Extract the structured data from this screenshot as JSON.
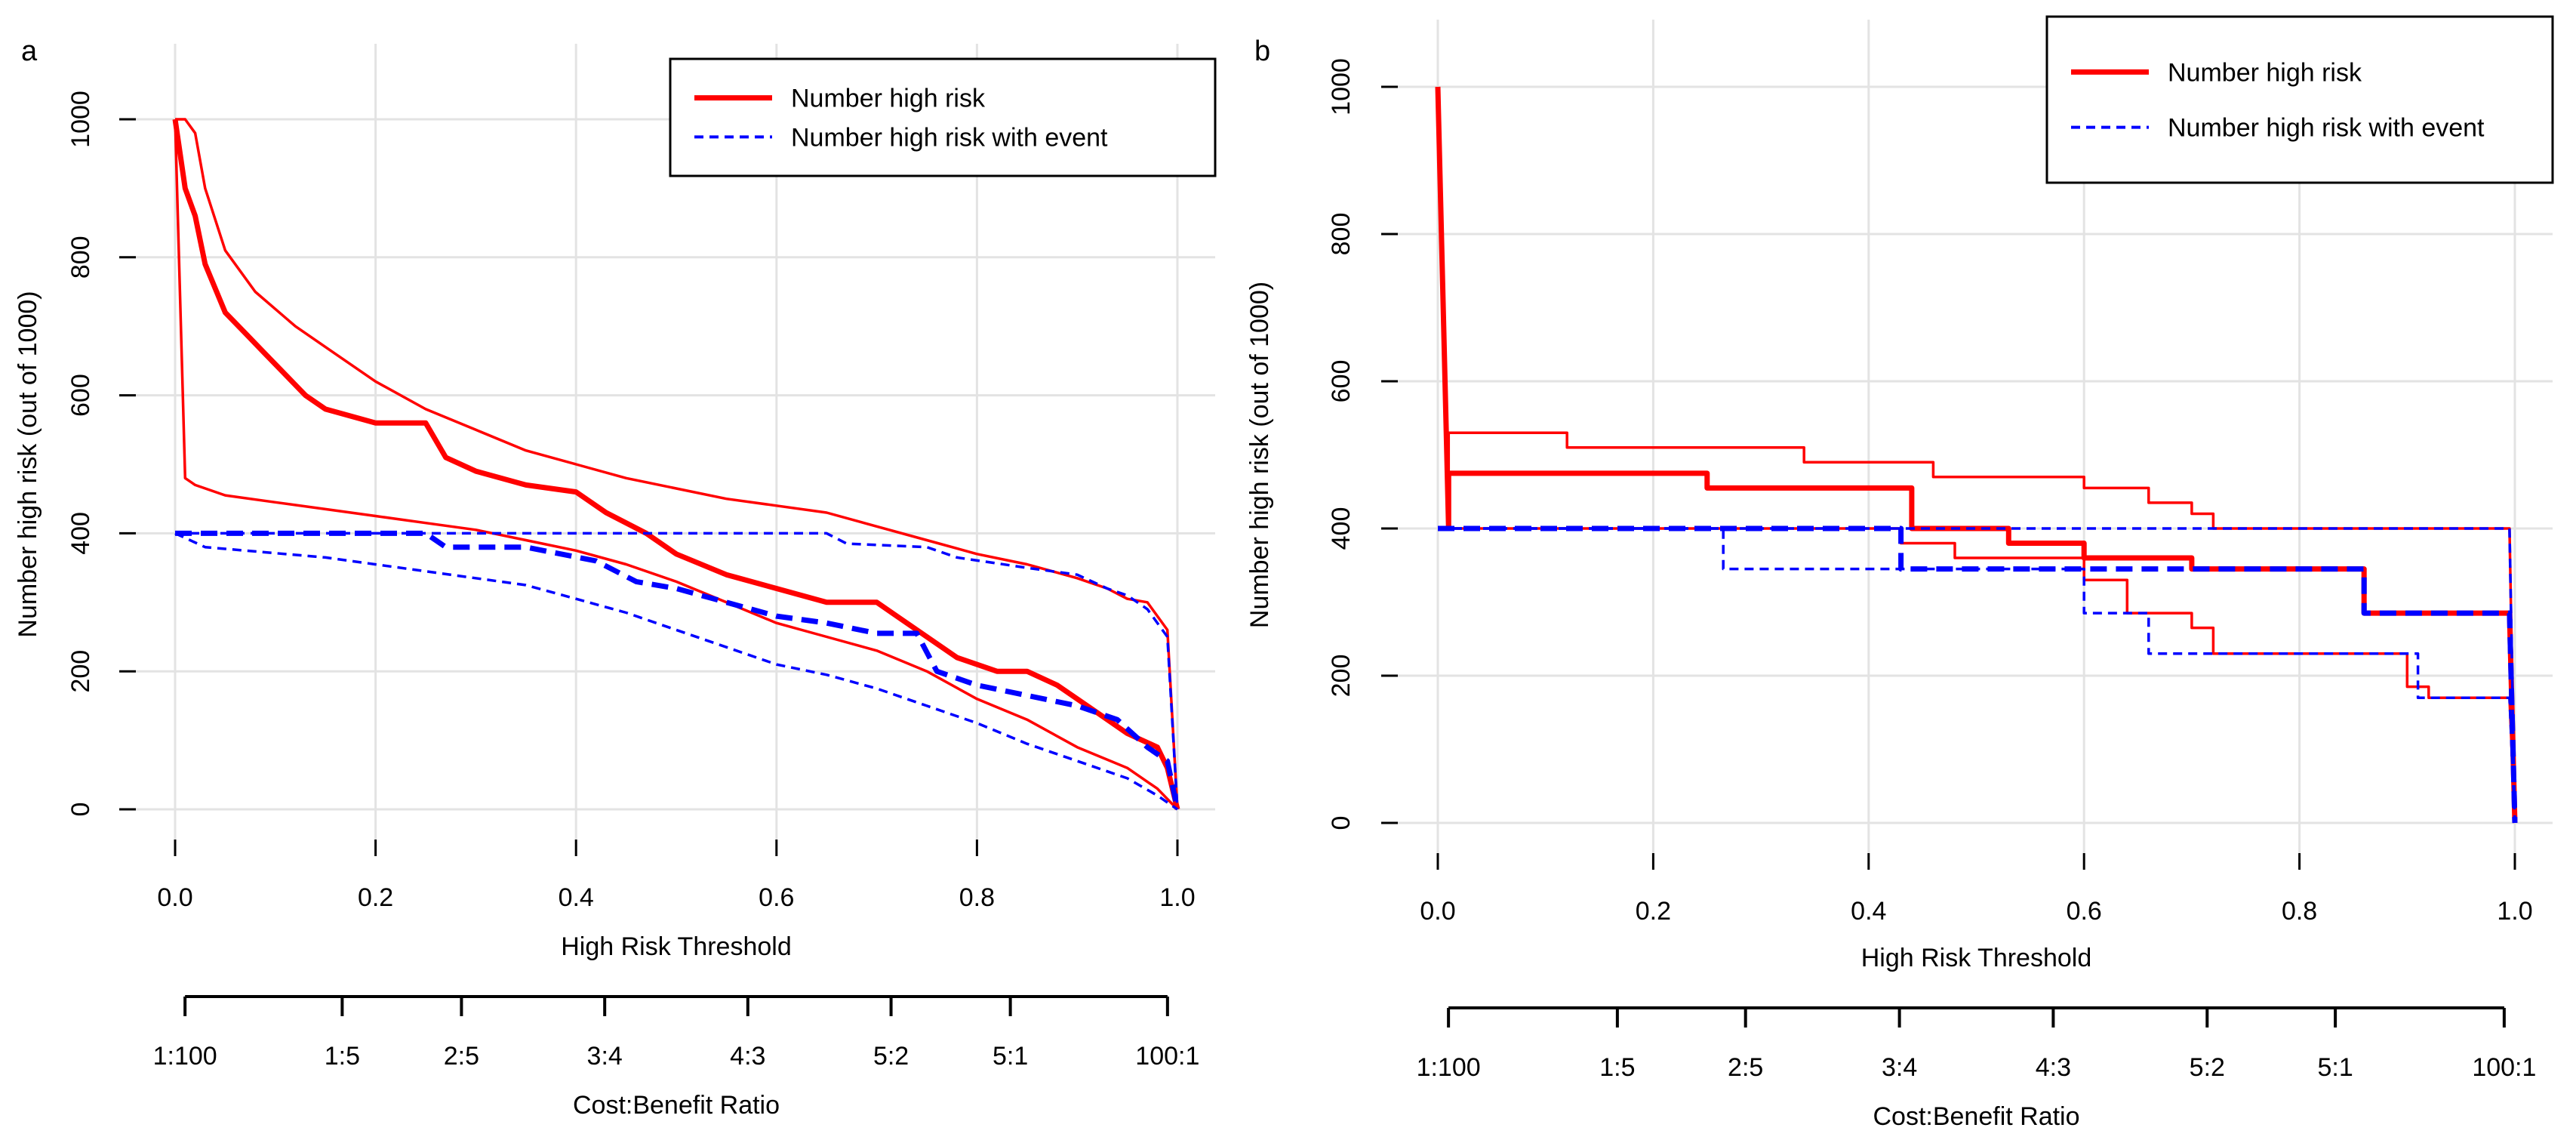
{
  "chart_data": [
    {
      "panel_label": "a",
      "type": "line",
      "title": "",
      "xlabel": "High Risk Threshold",
      "ylabel": "Number high risk (out of 1000)",
      "xlim": [
        0,
        1
      ],
      "ylim": [
        0,
        1000
      ],
      "x_ticks": [
        "0.0",
        "0.2",
        "0.4",
        "0.6",
        "0.8",
        "1.0"
      ],
      "y_ticks": [
        "0",
        "200",
        "400",
        "600",
        "800",
        "1000"
      ],
      "grid": true,
      "legend": {
        "position": "top-right",
        "entries": [
          {
            "label": "Number high risk",
            "color": "#ff0000",
            "style": "solid"
          },
          {
            "label": "Number high risk with event",
            "color": "#0000ff",
            "style": "dashed"
          }
        ]
      },
      "cost_benefit_axis": {
        "title": "Cost:Benefit Ratio",
        "labels": [
          "1:100",
          "1:5",
          "2:5",
          "3:4",
          "4:3",
          "5:2",
          "5:1",
          "100:1"
        ],
        "thresholds": [
          0.0099,
          0.1667,
          0.2857,
          0.4286,
          0.5714,
          0.7143,
          0.8333,
          0.9901
        ]
      },
      "series": [
        {
          "name": "Number high risk",
          "role": "estimate",
          "color": "#ff0000",
          "style": "solid",
          "width": "thick",
          "x": [
            0,
            0.01,
            0.02,
            0.03,
            0.05,
            0.07,
            0.09,
            0.11,
            0.13,
            0.15,
            0.2,
            0.25,
            0.27,
            0.3,
            0.35,
            0.4,
            0.43,
            0.47,
            0.5,
            0.55,
            0.6,
            0.65,
            0.7,
            0.72,
            0.75,
            0.78,
            0.82,
            0.85,
            0.88,
            0.9,
            0.92,
            0.95,
            0.98,
            0.99,
            1.0
          ],
          "y": [
            1000,
            900,
            860,
            790,
            720,
            690,
            660,
            630,
            600,
            580,
            560,
            560,
            510,
            490,
            470,
            460,
            430,
            400,
            370,
            340,
            320,
            300,
            300,
            280,
            250,
            220,
            200,
            200,
            180,
            160,
            140,
            110,
            90,
            60,
            0
          ]
        },
        {
          "name": "Number high risk (upper bound)",
          "role": "upper",
          "color": "#ff0000",
          "style": "solid",
          "width": "thin",
          "x": [
            0,
            0.01,
            0.02,
            0.03,
            0.05,
            0.08,
            0.12,
            0.16,
            0.2,
            0.25,
            0.3,
            0.35,
            0.4,
            0.45,
            0.5,
            0.55,
            0.6,
            0.65,
            0.7,
            0.75,
            0.8,
            0.85,
            0.9,
            0.93,
            0.95,
            0.97,
            0.99,
            1.0
          ],
          "y": [
            1000,
            1000,
            980,
            900,
            810,
            750,
            700,
            660,
            620,
            580,
            550,
            520,
            500,
            480,
            465,
            450,
            440,
            430,
            410,
            390,
            370,
            355,
            335,
            320,
            305,
            300,
            260,
            0
          ]
        },
        {
          "name": "Number high risk (lower bound)",
          "role": "lower",
          "color": "#ff0000",
          "style": "solid",
          "width": "thin",
          "x": [
            0,
            0.01,
            0.02,
            0.05,
            0.1,
            0.15,
            0.2,
            0.25,
            0.3,
            0.35,
            0.4,
            0.45,
            0.5,
            0.55,
            0.6,
            0.65,
            0.7,
            0.75,
            0.8,
            0.85,
            0.9,
            0.95,
            0.98,
            1.0
          ],
          "y": [
            1000,
            480,
            470,
            455,
            445,
            435,
            425,
            415,
            405,
            390,
            375,
            355,
            330,
            300,
            270,
            250,
            230,
            200,
            160,
            130,
            90,
            60,
            30,
            0
          ]
        },
        {
          "name": "Number high risk with event",
          "role": "estimate",
          "color": "#0000ff",
          "style": "dashed",
          "width": "thick",
          "x": [
            0,
            0.25,
            0.27,
            0.35,
            0.42,
            0.46,
            0.5,
            0.55,
            0.6,
            0.65,
            0.7,
            0.74,
            0.76,
            0.8,
            0.85,
            0.9,
            0.94,
            0.97,
            0.99,
            1.0
          ],
          "y": [
            400,
            400,
            380,
            380,
            360,
            330,
            320,
            300,
            280,
            270,
            255,
            255,
            200,
            180,
            165,
            150,
            130,
            90,
            70,
            0
          ]
        },
        {
          "name": "Number high risk with event (upper bound)",
          "role": "upper",
          "color": "#0000ff",
          "style": "dashed",
          "width": "thin",
          "x": [
            0,
            0.65,
            0.67,
            0.75,
            0.78,
            0.85,
            0.9,
            0.93,
            0.95,
            0.97,
            0.99,
            1.0
          ],
          "y": [
            400,
            400,
            385,
            380,
            365,
            350,
            340,
            320,
            310,
            290,
            250,
            0
          ]
        },
        {
          "name": "Number high risk with event (lower bound)",
          "role": "lower",
          "color": "#0000ff",
          "style": "dashed",
          "width": "thin",
          "x": [
            0,
            0.03,
            0.15,
            0.25,
            0.35,
            0.4,
            0.45,
            0.5,
            0.55,
            0.6,
            0.65,
            0.7,
            0.75,
            0.8,
            0.85,
            0.9,
            0.95,
            0.98,
            1.0
          ],
          "y": [
            400,
            380,
            365,
            345,
            325,
            305,
            285,
            260,
            235,
            210,
            195,
            175,
            150,
            125,
            95,
            70,
            45,
            20,
            0
          ]
        }
      ]
    },
    {
      "panel_label": "b",
      "type": "line",
      "title": "",
      "xlabel": "High Risk Threshold",
      "ylabel": "Number high risk (out of 1000)",
      "xlim": [
        0,
        1
      ],
      "ylim": [
        0,
        1000
      ],
      "x_ticks": [
        "0.0",
        "0.2",
        "0.4",
        "0.6",
        "0.8",
        "1.0"
      ],
      "y_ticks": [
        "0",
        "200",
        "400",
        "600",
        "800",
        "1000"
      ],
      "grid": true,
      "legend": {
        "position": "top-right",
        "entries": [
          {
            "label": "Number high risk",
            "color": "#ff0000",
            "style": "solid"
          },
          {
            "label": "Number high risk with event",
            "color": "#0000ff",
            "style": "dashed"
          }
        ]
      },
      "cost_benefit_axis": {
        "title": "Cost:Benefit Ratio",
        "labels": [
          "1:100",
          "1:5",
          "2:5",
          "3:4",
          "4:3",
          "5:2",
          "5:1",
          "100:1"
        ],
        "thresholds": [
          0.0099,
          0.1667,
          0.2857,
          0.4286,
          0.5714,
          0.7143,
          0.8333,
          0.9901
        ]
      },
      "series": [
        {
          "name": "Number high risk",
          "role": "estimate",
          "color": "#ff0000",
          "style": "solid",
          "width": "thick",
          "x": [
            0,
            0.01,
            0.01,
            0.25,
            0.25,
            0.44,
            0.44,
            0.53,
            0.53,
            0.6,
            0.6,
            0.7,
            0.7,
            0.86,
            0.86,
            0.995,
            1.0
          ],
          "y": [
            1000,
            400,
            475,
            475,
            455,
            455,
            400,
            400,
            380,
            380,
            360,
            360,
            345,
            345,
            285,
            285,
            0
          ]
        },
        {
          "name": "Number high risk (upper bound)",
          "role": "upper",
          "color": "#ff0000",
          "style": "solid",
          "width": "thin",
          "x": [
            0,
            0.01,
            0.01,
            0.12,
            0.12,
            0.34,
            0.34,
            0.46,
            0.46,
            0.6,
            0.6,
            0.66,
            0.66,
            0.7,
            0.7,
            0.72,
            0.72,
            0.995,
            1.0
          ],
          "y": [
            1000,
            400,
            530,
            530,
            510,
            510,
            490,
            490,
            470,
            470,
            455,
            455,
            435,
            435,
            420,
            420,
            400,
            400,
            0
          ]
        },
        {
          "name": "Number high risk (lower bound)",
          "role": "lower",
          "color": "#ff0000",
          "style": "solid",
          "width": "thin",
          "x": [
            0,
            0.01,
            0.01,
            0.43,
            0.43,
            0.48,
            0.48,
            0.6,
            0.6,
            0.64,
            0.64,
            0.7,
            0.7,
            0.72,
            0.72,
            0.9,
            0.9,
            0.92,
            0.92,
            0.995,
            1.0
          ],
          "y": [
            1000,
            400,
            400,
            400,
            380,
            380,
            360,
            360,
            330,
            330,
            285,
            285,
            265,
            265,
            230,
            230,
            185,
            185,
            170,
            170,
            0
          ]
        },
        {
          "name": "Number high risk with event",
          "role": "estimate",
          "color": "#0000ff",
          "style": "dashed",
          "width": "thick",
          "x": [
            0,
            0.43,
            0.43,
            0.7,
            0.7,
            0.86,
            0.86,
            0.995,
            1.0
          ],
          "y": [
            400,
            400,
            345,
            345,
            345,
            345,
            285,
            285,
            0
          ]
        },
        {
          "name": "Number high risk with event (upper bound)",
          "role": "upper",
          "color": "#0000ff",
          "style": "dashed",
          "width": "thin",
          "x": [
            0,
            0.995,
            1.0
          ],
          "y": [
            400,
            400,
            0
          ]
        },
        {
          "name": "Number high risk with event (lower bound)",
          "role": "lower",
          "color": "#0000ff",
          "style": "dashed",
          "width": "thin",
          "x": [
            0,
            0.265,
            0.265,
            0.6,
            0.6,
            0.66,
            0.66,
            0.91,
            0.91,
            0.995,
            1.0
          ],
          "y": [
            400,
            400,
            345,
            345,
            285,
            285,
            230,
            230,
            170,
            170,
            0
          ]
        }
      ]
    }
  ]
}
